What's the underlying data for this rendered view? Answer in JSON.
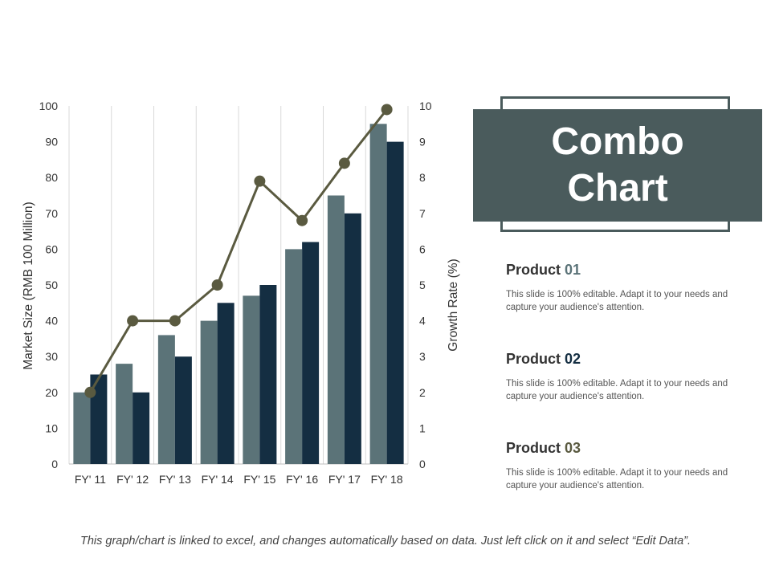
{
  "chart_data": {
    "type": "bar",
    "categories": [
      "FY' 11",
      "FY' 12",
      "FY' 13",
      "FY' 14",
      "FY' 15",
      "FY' 16",
      "FY' 17",
      "FY' 18"
    ],
    "series": [
      {
        "kind": "bar",
        "axis": "left",
        "color": "#5b7378",
        "values": [
          20,
          28,
          36,
          40,
          47,
          60,
          75,
          95
        ]
      },
      {
        "kind": "bar",
        "axis": "left",
        "color": "#142e42",
        "values": [
          25,
          20,
          30,
          45,
          50,
          62,
          70,
          90
        ]
      },
      {
        "kind": "line",
        "axis": "right",
        "color": "#5a5a40",
        "values": [
          2,
          4,
          4,
          5,
          7.9,
          6.8,
          8.4,
          9.9
        ]
      }
    ],
    "ylabel": "Market Size (RMB 100 Million)",
    "y2label": "Growth Rate (%)",
    "ylim": [
      0,
      100
    ],
    "y2lim": [
      0,
      10
    ],
    "yticks": [
      "0",
      "10",
      "20",
      "30",
      "40",
      "50",
      "60",
      "70",
      "80",
      "90",
      "100"
    ],
    "y2ticks": [
      "0",
      "1",
      "2",
      "3",
      "4",
      "5",
      "6",
      "7",
      "8",
      "9",
      "10"
    ],
    "grid": "vertical"
  },
  "panel": {
    "title_line1": "Combo",
    "title_line2": "Chart",
    "products": [
      {
        "name": "Product",
        "number": "01",
        "number_color": "#5b7378",
        "desc": "This slide is 100% editable. Adapt it to your needs and capture your audience's attention."
      },
      {
        "name": "Product",
        "number": "02",
        "number_color": "#142e42",
        "desc": "This slide is 100% editable. Adapt it to your needs and capture your audience's attention."
      },
      {
        "name": "Product",
        "number": "03",
        "number_color": "#5a5a40",
        "desc": "This slide is 100% editable. Adapt it to your needs and capture your audience's attention."
      }
    ]
  },
  "footer": "This graph/chart is linked to excel, and changes automatically based on data. Just left click on it and select “Edit Data”."
}
